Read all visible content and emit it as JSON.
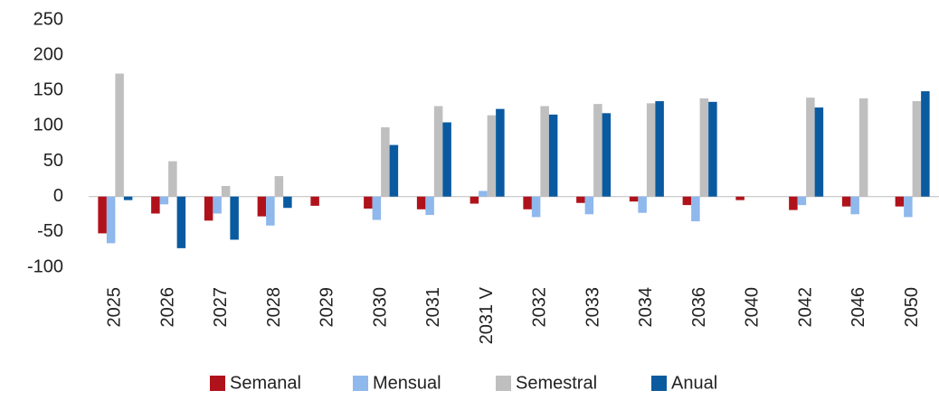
{
  "chart_data": {
    "type": "bar",
    "categories": [
      "2025",
      "2026",
      "2027",
      "2028",
      "2029",
      "2030",
      "2031",
      "2031 V",
      "2032",
      "2033",
      "2034",
      "2036",
      "2040",
      "2042",
      "2046",
      "2050"
    ],
    "series": [
      {
        "name": "Semanal",
        "color": "#b0121b",
        "values": [
          -52,
          -24,
          -34,
          -28,
          -13,
          -17,
          -18,
          -10,
          -18,
          -9,
          -7,
          -12,
          -5,
          -19,
          -14,
          -14
        ]
      },
      {
        "name": "Mensual",
        "color": "#8fb8ec",
        "values": [
          -66,
          -11,
          -24,
          -41,
          null,
          -33,
          -26,
          8,
          -29,
          -25,
          -23,
          -35,
          null,
          -12,
          -25,
          -29
        ]
      },
      {
        "name": "Semestral",
        "color": "#bfbfbf",
        "values": [
          174,
          50,
          15,
          29,
          null,
          98,
          128,
          115,
          128,
          131,
          132,
          139,
          null,
          140,
          139,
          135
        ]
      },
      {
        "name": "Anual",
        "color": "#0a5aa0",
        "values": [
          -5,
          -73,
          -61,
          -16,
          null,
          73,
          105,
          124,
          116,
          118,
          135,
          134,
          null,
          126,
          null,
          149
        ]
      }
    ],
    "ylim": [
      -100,
      250
    ],
    "yticks": [
      -100,
      -50,
      0,
      50,
      100,
      150,
      200,
      250
    ],
    "grid": false,
    "legend": "bottom"
  }
}
